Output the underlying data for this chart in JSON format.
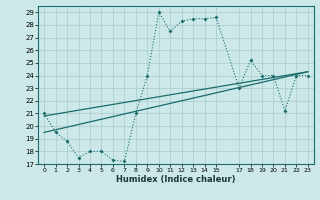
{
  "xlabel": "Humidex (Indice chaleur)",
  "bg_color": "#cce8e8",
  "grid_color": "#aacccc",
  "line_color": "#1a6b6b",
  "xlim": [
    -0.5,
    23.5
  ],
  "ylim": [
    17,
    29.5
  ],
  "yticks": [
    17,
    18,
    19,
    20,
    21,
    22,
    23,
    24,
    25,
    26,
    27,
    28,
    29
  ],
  "xticks": [
    0,
    1,
    2,
    3,
    4,
    5,
    6,
    7,
    8,
    9,
    10,
    11,
    12,
    13,
    14,
    15,
    17,
    18,
    19,
    20,
    21,
    22,
    23
  ],
  "xtick_labels": [
    "0",
    "1",
    "2",
    "3",
    "4",
    "5",
    "6",
    "7",
    "8",
    "9",
    "10",
    "11",
    "12",
    "13",
    "14",
    "15",
    "17",
    "18",
    "19",
    "20",
    "21",
    "22",
    "23"
  ],
  "series1_x": [
    0,
    1,
    2,
    3,
    4,
    5,
    6,
    7,
    8,
    9,
    10,
    11,
    12,
    13,
    14,
    15,
    17,
    18,
    19,
    20,
    21,
    22,
    23
  ],
  "series1_y": [
    21.0,
    19.5,
    18.8,
    17.5,
    18.0,
    18.0,
    17.3,
    17.2,
    21.0,
    24.0,
    29.0,
    27.5,
    28.3,
    28.5,
    28.5,
    28.6,
    23.0,
    25.2,
    24.0,
    24.0,
    21.2,
    24.0,
    24.0
  ],
  "series2_x": [
    0,
    23
  ],
  "series2_y": [
    19.5,
    24.3
  ],
  "series3_x": [
    0,
    23
  ],
  "series3_y": [
    20.8,
    24.3
  ]
}
